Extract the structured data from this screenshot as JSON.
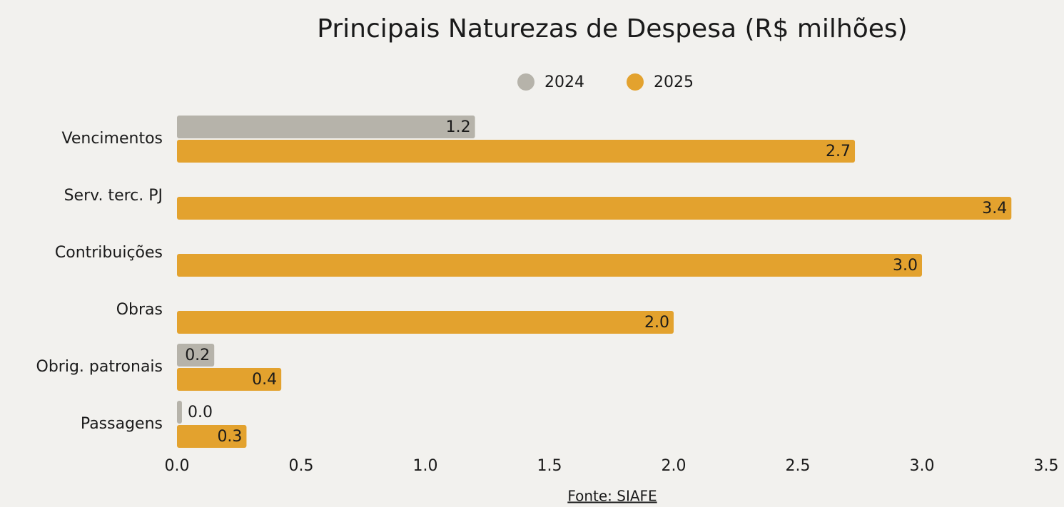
{
  "chart_data": {
    "type": "bar",
    "orientation": "horizontal",
    "title": "Principais Naturezas de Despesa (R$ milhões)",
    "categories": [
      "Vencimentos",
      "Serv. terc. PJ",
      "Contribuições",
      "Obras",
      "Obrig. patronais",
      "Passagens"
    ],
    "series": [
      {
        "name": "2024",
        "color": "#b6b3aa",
        "values": [
          1.2,
          null,
          null,
          null,
          0.15,
          0.02
        ],
        "value_labels": [
          "1.2",
          null,
          null,
          null,
          "0.2",
          "0.0"
        ]
      },
      {
        "name": "2025",
        "color": "#e3a22e",
        "values": [
          2.73,
          3.36,
          3.0,
          2.0,
          0.42,
          0.28
        ],
        "value_labels": [
          "2.7",
          "3.4",
          "3.0",
          "2.0",
          "0.4",
          "0.3"
        ]
      }
    ],
    "xlim": [
      0,
      3.5
    ],
    "xticks": [
      {
        "value": 0,
        "label": "0.0"
      },
      0.5,
      {
        "value": 1,
        "label": "1.0"
      },
      1.5,
      {
        "value": 2,
        "label": "2.0"
      },
      2.5,
      {
        "value": 3,
        "label": "3.0"
      },
      3.5
    ],
    "legend": "top",
    "source": "Fonte: SIAFE"
  }
}
